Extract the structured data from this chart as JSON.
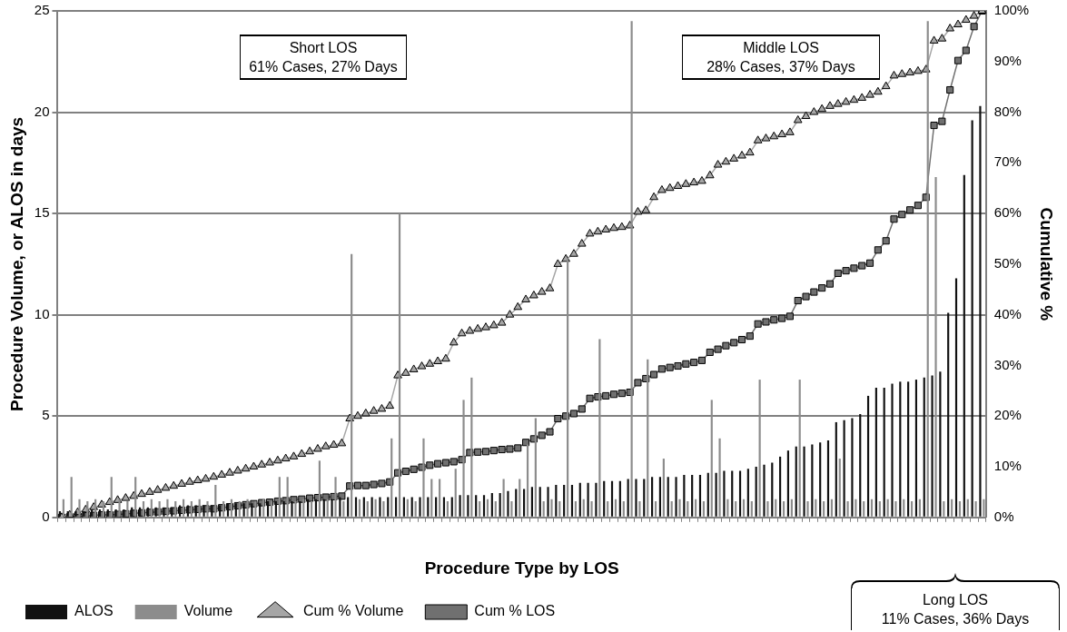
{
  "chart_data": {
    "type": "bar",
    "categories": [
      null,
      null,
      null,
      null,
      null,
      null,
      null,
      null,
      null,
      null,
      null,
      null,
      null,
      null,
      null,
      null,
      null,
      null,
      null,
      null,
      null,
      null,
      null,
      null,
      null,
      null,
      null,
      null,
      null,
      null,
      null,
      null,
      null,
      null,
      null,
      null,
      null,
      null,
      null,
      null,
      null,
      null,
      null,
      null,
      null,
      null,
      null,
      null,
      null,
      null,
      null,
      null,
      null,
      null,
      null,
      null,
      null,
      null,
      null,
      null,
      null,
      null,
      null,
      null,
      null,
      null,
      null,
      null,
      null,
      null,
      null,
      null,
      null,
      null,
      null,
      null,
      null,
      null,
      null,
      null,
      null,
      null,
      null,
      null,
      null,
      null,
      null,
      null,
      null,
      null,
      null,
      null,
      null,
      null,
      null,
      null,
      null,
      null,
      null,
      null,
      null,
      null,
      null,
      null,
      null,
      null,
      null,
      null,
      null,
      null,
      null,
      null,
      null,
      null,
      null,
      null
    ],
    "series": [
      {
        "name": "ALOS",
        "color": "#111111",
        "values": [
          0.3,
          0.3,
          0.3,
          0.3,
          0.4,
          0.4,
          0.4,
          0.4,
          0.4,
          0.5,
          0.5,
          0.5,
          0.5,
          0.5,
          0.5,
          0.6,
          0.6,
          0.6,
          0.6,
          0.6,
          0.6,
          0.7,
          0.7,
          0.7,
          0.7,
          0.7,
          0.8,
          0.8,
          0.8,
          0.8,
          0.8,
          0.9,
          0.9,
          0.9,
          0.9,
          1,
          1,
          1,
          1,
          1,
          1,
          1,
          1,
          1,
          1,
          1,
          1,
          1,
          1,
          1,
          1.1,
          1.1,
          1.1,
          1.1,
          1.2,
          1.2,
          1.3,
          1.4,
          1.4,
          1.5,
          1.5,
          1.5,
          1.6,
          1.6,
          1.6,
          1.7,
          1.7,
          1.7,
          1.8,
          1.8,
          1.8,
          1.9,
          1.9,
          1.9,
          2.0,
          2.0,
          2.0,
          2.0,
          2.1,
          2.1,
          2.1,
          2.2,
          2.2,
          2.3,
          2.3,
          2.3,
          2.4,
          2.5,
          2.6,
          2.7,
          3.0,
          3.3,
          3.5,
          3.5,
          3.6,
          3.7,
          3.8,
          4.7,
          4.8,
          4.9,
          5.1,
          6.0,
          6.4,
          6.4,
          6.6,
          6.7,
          6.7,
          6.8,
          6.9,
          7.0,
          7.2,
          10.1,
          11.8,
          16.9,
          19.6,
          20.3
        ]
      },
      {
        "name": "Volume",
        "color": "#8c8c8c",
        "values": [
          0.9,
          2,
          0.9,
          0.8,
          0.9,
          0.8,
          2,
          0.9,
          0.8,
          2,
          0.8,
          0.9,
          0.8,
          0.9,
          0.8,
          0.9,
          0.8,
          0.9,
          0.8,
          1.6,
          0.8,
          0.9,
          0.8,
          0.9,
          0.8,
          0.9,
          0.8,
          2,
          2,
          0.8,
          0.9,
          0.8,
          2.8,
          0.9,
          2,
          0.8,
          13,
          0.9,
          0.8,
          0.9,
          0.8,
          3.9,
          15,
          0.9,
          0.8,
          3.9,
          1.9,
          1.9,
          0.8,
          2.4,
          5.8,
          6.9,
          0.8,
          0.9,
          0.8,
          1.9,
          0.8,
          1.9,
          3.6,
          4.9,
          0.8,
          0.9,
          0.8,
          12.8,
          0.8,
          0.9,
          0.8,
          8.8,
          0.8,
          0.9,
          0.8,
          24.5,
          0.8,
          7.8,
          0.8,
          2.9,
          0.8,
          0.9,
          0.8,
          0.9,
          0.8,
          5.8,
          3.9,
          0.9,
          0.8,
          0.9,
          0.8,
          6.8,
          0.8,
          0.9,
          0.8,
          0.9,
          6.8,
          0.8,
          0.9,
          0.8,
          0.9,
          2.9,
          0.8,
          0.9,
          0.8,
          0.9,
          0.8,
          0.9,
          0.8,
          0.9,
          0.8,
          0.9,
          24.5,
          16.8,
          0.8,
          0.9,
          0.8,
          0.9,
          0.8,
          0.9
        ]
      },
      {
        "name": "Cum % Volume",
        "type": "line",
        "axis": "y2",
        "marker": "triangle",
        "color": "#a6a6a6",
        "values": [
          0,
          0.5,
          1,
          1.5,
          2,
          2.5,
          3,
          3.4,
          3.8,
          4.2,
          4.6,
          5,
          5.4,
          5.8,
          6.2,
          6.6,
          7,
          7.3,
          7.6,
          8,
          8.4,
          8.8,
          9.2,
          9.6,
          10,
          10.4,
          10.8,
          11.2,
          11.6,
          12,
          12.5,
          13,
          13.5,
          14,
          14.3,
          14.6,
          19.5,
          20,
          20.5,
          21,
          21.4,
          22,
          28,
          28.5,
          29.2,
          29.8,
          30.3,
          30.8,
          31.3,
          34.5,
          36.3,
          36.8,
          37.2,
          37.5,
          37.9,
          38.4,
          40,
          41.5,
          43,
          43.8,
          44.5,
          45.2,
          50,
          51,
          52,
          54,
          56,
          56.4,
          56.8,
          57.1,
          57.3,
          57.6,
          60.3,
          60.6,
          63.2,
          64.6,
          65,
          65.4,
          65.8,
          66.1,
          66.4,
          67.5,
          69.6,
          70.2,
          70.8,
          71.4,
          72,
          74.4,
          74.8,
          75.2,
          75.6,
          76,
          78.4,
          79.2,
          80,
          80.6,
          81.2,
          81.6,
          82,
          82.4,
          82.8,
          83.4,
          84,
          85.1,
          87.2,
          87.5,
          87.8,
          88.1,
          88.4,
          94.1,
          94.5,
          96.5,
          97.3,
          98.2,
          99,
          100
        ]
      },
      {
        "name": "Cum % LOS",
        "type": "line",
        "axis": "y2",
        "marker": "square",
        "color": "#707070",
        "values": [
          0,
          0.1,
          0.2,
          0.3,
          0.4,
          0.5,
          0.5,
          0.6,
          0.7,
          0.8,
          0.9,
          1.0,
          1.1,
          1.2,
          1.3,
          1.4,
          1.5,
          1.6,
          1.7,
          1.7,
          1.9,
          2.1,
          2.3,
          2.5,
          2.7,
          2.9,
          3.0,
          3.2,
          3.3,
          3.5,
          3.6,
          3.8,
          3.9,
          4.0,
          4.1,
          4.2,
          6.2,
          6.3,
          6.3,
          6.5,
          6.7,
          7.0,
          8.8,
          9.1,
          9.5,
          9.9,
          10.3,
          10.6,
          10.8,
          11.0,
          11.4,
          12.8,
          12.9,
          13.0,
          13.2,
          13.4,
          13.5,
          13.7,
          14.8,
          15.5,
          16.2,
          16.9,
          19.5,
          20.0,
          20.5,
          21.4,
          23.5,
          23.8,
          24.0,
          24.3,
          24.5,
          24.7,
          26.6,
          27.4,
          28.2,
          29.3,
          29.6,
          29.9,
          30.3,
          30.6,
          31.0,
          32.6,
          33.2,
          33.9,
          34.5,
          35.1,
          35.8,
          38.2,
          38.6,
          39.0,
          39.3,
          39.7,
          42.8,
          43.6,
          44.5,
          45.3,
          46.1,
          48.2,
          48.7,
          49.2,
          49.7,
          50.2,
          52.8,
          54.6,
          58.9,
          59.8,
          60.7,
          61.6,
          63.2,
          77.4,
          78.2,
          84.4,
          90.2,
          92.2,
          96.9,
          100
        ]
      }
    ],
    "xlabel": "Procedure Type by LOS",
    "ylabel": "Procedure Volume, or ALOS in days",
    "y2label": "Cumulative %",
    "ylim": [
      0,
      25
    ],
    "yticks": [
      0,
      5,
      10,
      15,
      20,
      25
    ],
    "y2lim": [
      0,
      100
    ],
    "y2ticks": [
      {
        "value": 0,
        "label": "0%"
      },
      {
        "value": 10,
        "label": "10%"
      },
      {
        "value": 20,
        "label": "20%"
      },
      {
        "value": 30,
        "label": "30%"
      },
      {
        "value": 40,
        "label": "40%"
      },
      {
        "value": 50,
        "label": "50%"
      },
      {
        "value": 60,
        "label": "60%"
      },
      {
        "value": 70,
        "label": "70%"
      },
      {
        "value": 80,
        "label": "80%"
      },
      {
        "value": 90,
        "label": "90%"
      },
      {
        "value": 100,
        "label": "100%"
      }
    ],
    "grid": "y",
    "legend": "bottom",
    "annotations": [
      "Short LOS\n61% Cases, 27% Days",
      "Middle LOS\n28% Cases, 37% Days",
      "Long LOS\n11% Cases, 36% Days"
    ]
  }
}
